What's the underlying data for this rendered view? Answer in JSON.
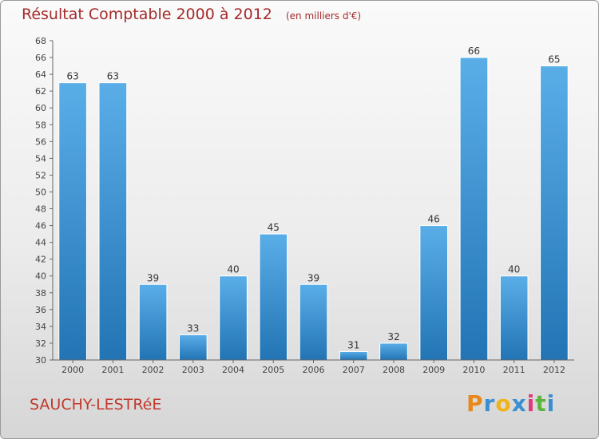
{
  "title": "Résultat Comptable 2000 à 2012",
  "subtitle": "(en milliers d'€)",
  "place": "SAUCHY-LESTRéE",
  "logo": {
    "letters": [
      "P",
      "r",
      "o",
      "x",
      "i",
      "t",
      "i"
    ],
    "colors": [
      "#e8891c",
      "#3b8fd1",
      "#f0b41a",
      "#3b8fd1",
      "#e23a7a",
      "#5bb53b",
      "#3b8fd1"
    ]
  },
  "colors": {
    "bar_light": "#5aaee8",
    "bar_dark": "#2274b4",
    "title": "#a52a2a",
    "axis": "#555555"
  },
  "chart_data": {
    "type": "bar",
    "categories": [
      "2000",
      "2001",
      "2002",
      "2003",
      "2004",
      "2005",
      "2006",
      "2007",
      "2008",
      "2009",
      "2010",
      "2011",
      "2012"
    ],
    "values": [
      63,
      63,
      39,
      33,
      40,
      45,
      39,
      31,
      32,
      46,
      66,
      40,
      65
    ],
    "ylim": [
      30,
      68
    ],
    "yticks": [
      30,
      32,
      34,
      36,
      38,
      40,
      42,
      44,
      46,
      48,
      50,
      52,
      54,
      56,
      58,
      60,
      62,
      64,
      66,
      68
    ],
    "title": "Résultat Comptable 2000 à 2012",
    "xlabel": "",
    "ylabel": "",
    "grid": false,
    "data_labels": true
  }
}
